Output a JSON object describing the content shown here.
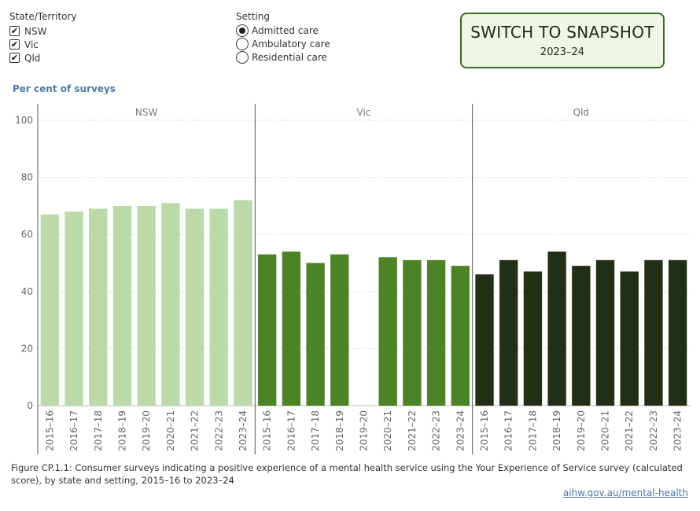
{
  "filters": {
    "state": {
      "title": "State/Territory",
      "options": [
        {
          "label": "NSW",
          "checked": true
        },
        {
          "label": "Vic",
          "checked": true
        },
        {
          "label": "Qld",
          "checked": true
        }
      ]
    },
    "setting": {
      "title": "Setting",
      "options": [
        {
          "label": "Admitted care",
          "selected": true
        },
        {
          "label": "Ambulatory care",
          "selected": false
        },
        {
          "label": "Residential care",
          "selected": false
        }
      ]
    }
  },
  "snapshot_button": {
    "title": "SWITCH TO SNAPSHOT",
    "subtitle": "2023–24"
  },
  "caption": "Figure CP.1.1: Consumer surveys indicating a positive experience of a mental health service using the Your Experience of Service survey (calculated score), by state and setting, 2015–16 to 2023–24",
  "link": "aihw.gov.au/mental-health",
  "colors": {
    "NSW": "#bcd9a9",
    "Vic": "#4b8326",
    "Qld": "#212f16",
    "grid": "#d0d0d0",
    "divider": "#555555",
    "axis_text": "#666666"
  },
  "chart_data": {
    "type": "bar",
    "ylabel": "Per cent of surveys",
    "ylim": [
      0,
      100
    ],
    "yticks": [
      0,
      20,
      40,
      60,
      80,
      100
    ],
    "grid": true,
    "categories": [
      "2015–16",
      "2016–17",
      "2017–18",
      "2018–19",
      "2019–20",
      "2020–21",
      "2021–22",
      "2022–23",
      "2023–24"
    ],
    "panels": [
      {
        "name": "NSW",
        "values": [
          67,
          68,
          69,
          70,
          70,
          71,
          69,
          69,
          72
        ]
      },
      {
        "name": "Vic",
        "values": [
          53,
          54,
          50,
          53,
          null,
          52,
          51,
          51,
          49
        ]
      },
      {
        "name": "Qld",
        "values": [
          46,
          51,
          47,
          54,
          49,
          51,
          47,
          51,
          51
        ]
      }
    ]
  }
}
